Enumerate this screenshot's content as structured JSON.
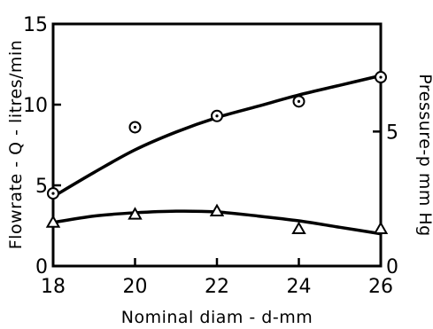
{
  "chart_data": {
    "type": "scatter",
    "xlabel": "Nominal diam - d-mm",
    "ylabel_left": "Flowrate - Q - litres/min",
    "ylabel_right": "Pressure-p  mm Hg",
    "x_ticks": [
      "18",
      "20",
      "22",
      "24",
      "26"
    ],
    "y_left_ticks": [
      "0",
      "5",
      "10",
      "15"
    ],
    "y_right_ticks": [
      "0",
      "5"
    ],
    "xlim": [
      18,
      26
    ],
    "ylim_left": [
      0,
      15
    ],
    "ylim_right": [
      0,
      9
    ],
    "grid": false,
    "series": [
      {
        "marker": "circle-dot",
        "axis": "left",
        "points": [
          [
            18,
            4.5
          ],
          [
            20,
            8.6
          ],
          [
            22,
            9.3
          ],
          [
            24,
            10.2
          ],
          [
            26,
            11.7
          ]
        ],
        "fit": [
          [
            18,
            4.3
          ],
          [
            19,
            5.8
          ],
          [
            20,
            7.2
          ],
          [
            21,
            8.3
          ],
          [
            22,
            9.2
          ],
          [
            23,
            9.9
          ],
          [
            24,
            10.6
          ],
          [
            25,
            11.2
          ],
          [
            26,
            11.8
          ]
        ]
      },
      {
        "marker": "triangle",
        "axis": "left",
        "points": [
          [
            18,
            2.7
          ],
          [
            20,
            3.2
          ],
          [
            22,
            3.4
          ],
          [
            24,
            2.3
          ],
          [
            26,
            2.3
          ]
        ],
        "fit": [
          [
            18,
            2.7
          ],
          [
            19,
            3.1
          ],
          [
            20,
            3.3
          ],
          [
            21,
            3.4
          ],
          [
            22,
            3.35
          ],
          [
            23,
            3.1
          ],
          [
            24,
            2.8
          ],
          [
            25,
            2.4
          ],
          [
            26,
            2.0
          ]
        ]
      }
    ]
  }
}
